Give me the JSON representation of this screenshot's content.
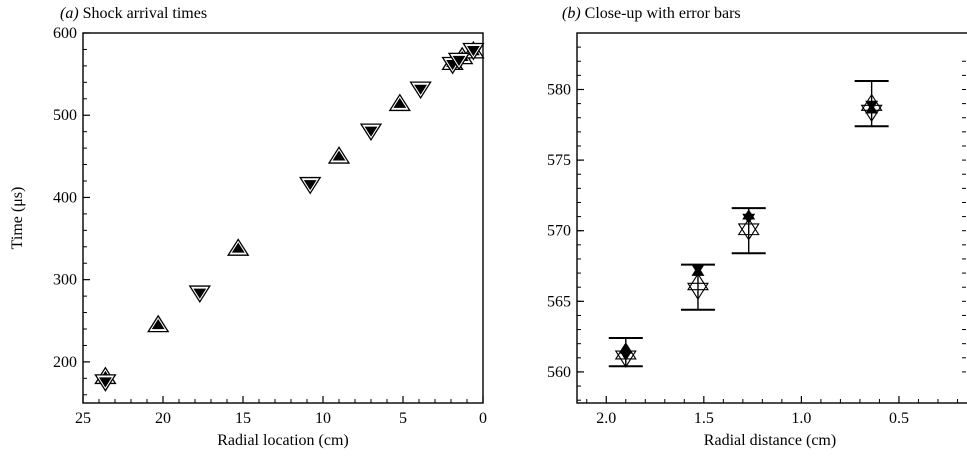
{
  "chart_data": [
    {
      "type": "scatter",
      "panel_label": "(a)",
      "title": "Shock arrival times",
      "xlabel": "Radial location (cm)",
      "ylabel": "Time (μs)",
      "xlim": [
        25,
        0
      ],
      "ylim": [
        150,
        600
      ],
      "xticks": [
        "25",
        "20",
        "15",
        "10",
        "5",
        "0"
      ],
      "yticks": [
        "200",
        "300",
        "400",
        "500",
        "600"
      ],
      "grid": false,
      "series": [
        {
          "marker": "triangle-up",
          "points": [
            [
              23.6,
              182
            ],
            [
              20.3,
              245
            ],
            [
              15.3,
              338
            ],
            [
              9.0,
              450
            ],
            [
              5.2,
              514
            ],
            [
              1.9,
              564
            ],
            [
              1.3,
              571
            ],
            [
              0.6,
              578
            ]
          ]
        },
        {
          "marker": "triangle-down",
          "points": [
            [
              23.6,
              176
            ],
            [
              17.7,
              284
            ],
            [
              10.8,
              416
            ],
            [
              7.0,
              481
            ],
            [
              3.9,
              532
            ],
            [
              1.9,
              562
            ],
            [
              1.5,
              567
            ],
            [
              0.6,
              579
            ]
          ]
        }
      ]
    },
    {
      "type": "scatter",
      "panel_label": "(b)",
      "title": "Close-up with error bars",
      "xlabel": "Radial distance (cm)",
      "ylabel": "",
      "xlim": [
        2.15,
        0.1
      ],
      "ylim": [
        557.8,
        584.0
      ],
      "xticks": [
        "2.0",
        "1.5",
        "1.0",
        "0.5"
      ],
      "yticks": [
        "560",
        "565",
        "570",
        "575",
        "580"
      ],
      "grid": false,
      "series": [
        {
          "marker": "triangle-up-filled",
          "points": [
            [
              1.9,
              561.6
            ],
            [
              1.53,
              567.1
            ],
            [
              1.27,
              571.1
            ],
            [
              0.64,
              578.6
            ]
          ]
        },
        {
          "marker": "triangle-down-filled",
          "points": [
            [
              1.9,
              561.2
            ],
            [
              1.53,
              567.3
            ],
            [
              1.27,
              570.9
            ],
            [
              0.64,
              578.9
            ]
          ]
        },
        {
          "marker": "triangle-up-open",
          "points": [
            [
              1.9,
              561.4
            ],
            [
              1.53,
              566.3
            ],
            [
              1.27,
              570.2
            ],
            [
              0.64,
              579.0
            ]
          ]
        },
        {
          "marker": "triangle-down-open",
          "points": [
            [
              1.9,
              561.0
            ],
            [
              1.53,
              565.8
            ],
            [
              1.27,
              570.0
            ],
            [
              0.64,
              578.4
            ]
          ]
        }
      ],
      "error_bars": [
        {
          "x": 1.9,
          "low": 560.4,
          "high": 562.4
        },
        {
          "x": 1.53,
          "low": 564.4,
          "high": 567.6
        },
        {
          "x": 1.27,
          "low": 568.4,
          "high": 571.6
        },
        {
          "x": 0.64,
          "low": 577.4,
          "high": 580.6
        }
      ]
    }
  ]
}
